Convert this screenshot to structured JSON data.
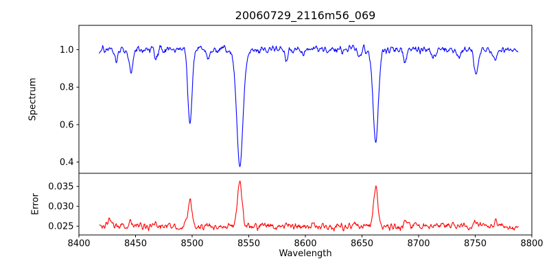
{
  "figure": {
    "title": "20060729_2116m56_069",
    "background": "#ffffff",
    "spine_color": "#000000"
  },
  "axes": {
    "xlabel": "Wavelength",
    "xlim": [
      8400,
      8800
    ],
    "xticks": [
      8400,
      8450,
      8500,
      8550,
      8600,
      8650,
      8700,
      8750,
      8800
    ],
    "xtick_labels": [
      "8400",
      "8450",
      "8500",
      "8550",
      "8600",
      "8650",
      "8700",
      "8750",
      "8800"
    ]
  },
  "chart_data": [
    {
      "type": "line",
      "panel": "spectrum",
      "ylabel": "Spectrum",
      "line_color": "#0000ff",
      "x_range": [
        8418,
        8788
      ],
      "xlim": [
        8400,
        8800
      ],
      "ylim": [
        0.34,
        1.13
      ],
      "yticks": [
        0.4,
        0.6,
        0.8,
        1.0
      ],
      "ytick_labels": [
        "0.4",
        "0.6",
        "0.8",
        "1.0"
      ],
      "continuum": 1.0,
      "noise_sigma": 0.01,
      "noise_seed": 11,
      "absorption_lines": [
        {
          "center": 8433.0,
          "min": 0.93,
          "sigma": 1.4
        },
        {
          "center": 8446.0,
          "min": 0.89,
          "sigma": 1.6
        },
        {
          "center": 8468.0,
          "min": 0.95,
          "sigma": 1.2
        },
        {
          "center": 8498.0,
          "min": 0.6,
          "sigma": 1.8
        },
        {
          "center": 8514.0,
          "min": 0.955,
          "sigma": 1.2
        },
        {
          "center": 8542.1,
          "min": 0.38,
          "sigma": 2.8
        },
        {
          "center": 8583.0,
          "min": 0.95,
          "sigma": 1.3
        },
        {
          "center": 8598.0,
          "min": 0.96,
          "sigma": 1.2
        },
        {
          "center": 8648.0,
          "min": 0.96,
          "sigma": 1.2
        },
        {
          "center": 8662.1,
          "min": 0.51,
          "sigma": 2.3
        },
        {
          "center": 8688.0,
          "min": 0.94,
          "sigma": 1.4
        },
        {
          "center": 8713.0,
          "min": 0.96,
          "sigma": 1.2
        },
        {
          "center": 8736.0,
          "min": 0.955,
          "sigma": 1.2
        },
        {
          "center": 8751.0,
          "min": 0.88,
          "sigma": 2.0
        },
        {
          "center": 8768.0,
          "min": 0.93,
          "sigma": 1.5
        }
      ]
    },
    {
      "type": "line",
      "panel": "error",
      "ylabel": "Error",
      "line_color": "#ff0000",
      "x_range": [
        8418,
        8788
      ],
      "xlim": [
        8400,
        8800
      ],
      "ylim": [
        0.0228,
        0.0383
      ],
      "yticks": [
        0.025,
        0.03,
        0.035
      ],
      "ytick_labels": [
        "0.025",
        "0.030",
        "0.035"
      ],
      "baseline": 0.025,
      "noise_sigma": 0.00045,
      "noise_seed": 12,
      "peaks": [
        {
          "center": 8427.0,
          "amp": 0.0018,
          "sigma": 1.6
        },
        {
          "center": 8446.0,
          "amp": 0.001,
          "sigma": 1.5
        },
        {
          "center": 8466.0,
          "amp": 0.0014,
          "sigma": 1.4
        },
        {
          "center": 8498.0,
          "amp": 0.0066,
          "sigma": 1.7
        },
        {
          "center": 8542.1,
          "amp": 0.0118,
          "sigma": 1.9
        },
        {
          "center": 8662.1,
          "amp": 0.01,
          "sigma": 1.9
        },
        {
          "center": 8688.0,
          "amp": 0.0008,
          "sigma": 1.4
        },
        {
          "center": 8751.0,
          "amp": 0.0012,
          "sigma": 1.6
        },
        {
          "center": 8768.0,
          "amp": 0.0012,
          "sigma": 1.4
        }
      ]
    }
  ]
}
